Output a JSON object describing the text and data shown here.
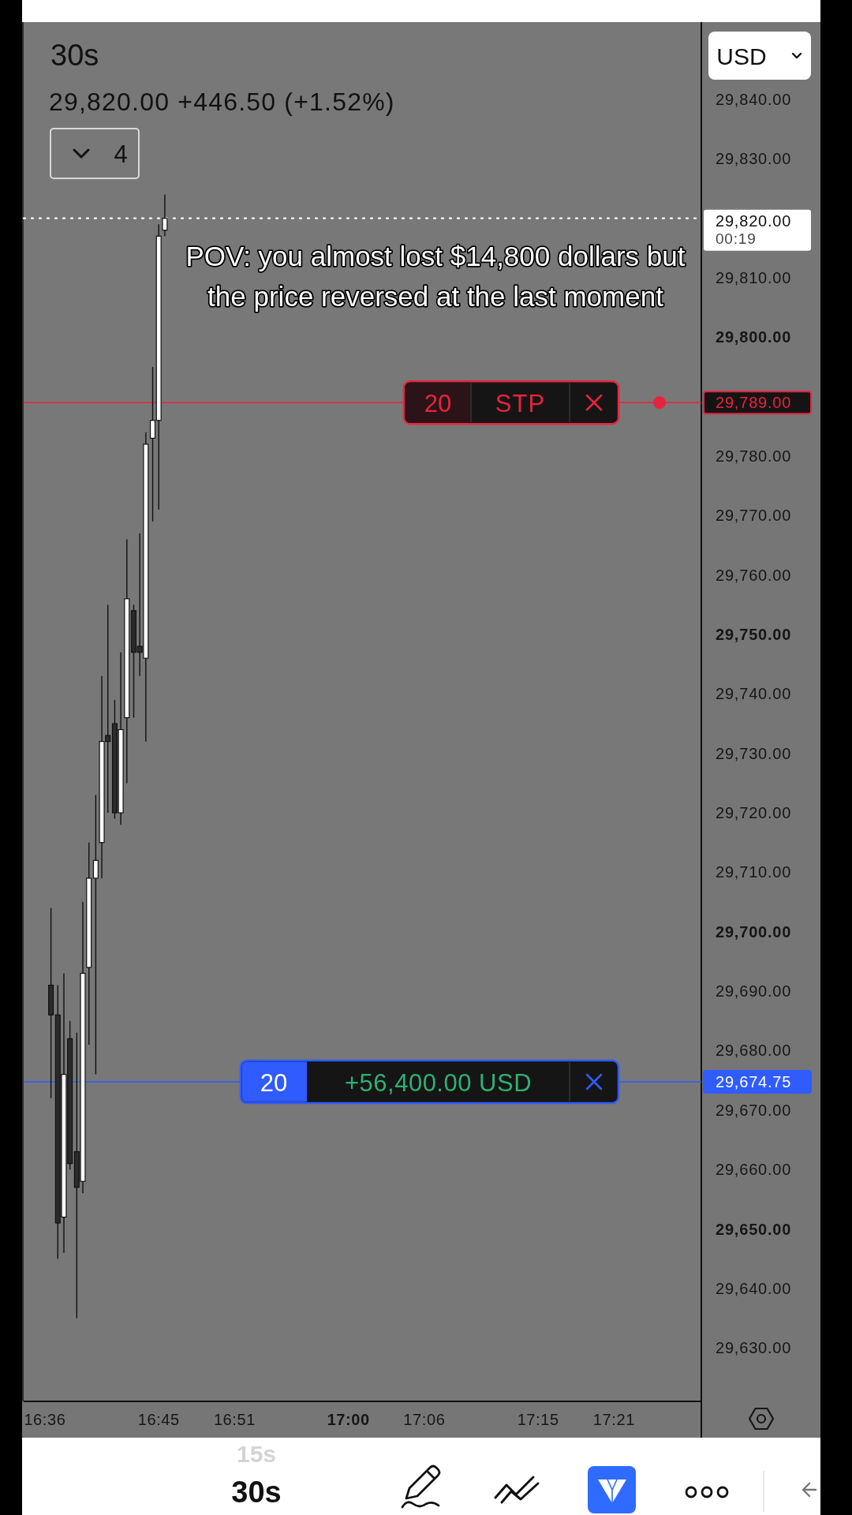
{
  "chart_data": {
    "type": "candlestick",
    "title": "30s",
    "subtitle": "29,820.00 +446.50 (+1.52%)",
    "x": [
      16.608,
      16.617,
      16.625,
      16.633,
      16.642,
      16.65,
      16.658,
      16.667,
      16.675,
      16.683,
      16.692,
      16.7,
      16.708,
      16.717,
      16.725,
      16.733,
      16.742,
      16.75,
      16.758
    ],
    "ohlc": [
      [
        29691,
        29704,
        29672,
        29686
      ],
      [
        29686,
        29691,
        29645,
        29651
      ],
      [
        29652,
        29693,
        29646,
        29676
      ],
      [
        29682,
        29685,
        29660,
        29661
      ],
      [
        29663,
        29683,
        29635,
        29657
      ],
      [
        29658,
        29705,
        29656,
        29693
      ],
      [
        29694,
        29715,
        29681,
        29709
      ],
      [
        29709,
        29723,
        29676,
        29712
      ],
      [
        29715,
        29743,
        29709,
        29732
      ],
      [
        29733,
        29755,
        29720,
        29732
      ],
      [
        29735,
        29739,
        29719,
        29720
      ],
      [
        29720,
        29747,
        29718,
        29734
      ],
      [
        29736,
        29766,
        29725,
        29756
      ],
      [
        29754,
        29755,
        29736,
        29747
      ],
      [
        29748,
        29767,
        29743,
        29747
      ],
      [
        29746,
        29784,
        29732,
        29782
      ],
      [
        29783,
        29795,
        29769,
        29786
      ],
      [
        29786,
        29819,
        29771,
        29817
      ],
      [
        29818,
        29824,
        29817,
        29820
      ]
    ],
    "colors": [
      "#2b2b2b",
      "#2b2b2b",
      "#ffffff",
      "#2b2b2b",
      "#2b2b2b",
      "#ffffff",
      "#ffffff",
      "#ffffff",
      "#ffffff",
      "#2b2b2b",
      "#2b2b2b",
      "#ffffff",
      "#ffffff",
      "#2b2b2b",
      "#2b2b2b",
      "#ffffff",
      "#ffffff",
      "#ffffff",
      "#ffffff"
    ],
    "xlim": [
      16.572,
      17.465
    ],
    "xticks": [
      {
        "value": 16.6,
        "label": "16:36"
      },
      {
        "value": 16.75,
        "label": "16:45"
      },
      {
        "value": 16.85,
        "label": "16:51"
      },
      {
        "value": 17,
        "label": "17:00"
      },
      {
        "value": 17.1,
        "label": "17:06"
      },
      {
        "value": 17.25,
        "label": "17:15"
      },
      {
        "value": 17.35,
        "label": "17:21"
      }
    ],
    "ylim": [
      29621,
      29853
    ],
    "yticks": [
      {
        "value": 29840,
        "label": "29,840.00"
      },
      {
        "value": 29830,
        "label": "29,830.00"
      },
      {
        "value": 29810,
        "label": "29,810.00"
      },
      {
        "value": 29800,
        "label": "29,800.00"
      },
      {
        "value": 29780,
        "label": "29,780.00"
      },
      {
        "value": 29770,
        "label": "29,770.00"
      },
      {
        "value": 29760,
        "label": "29,760.00"
      },
      {
        "value": 29750,
        "label": "29,750.00"
      },
      {
        "value": 29740,
        "label": "29,740.00"
      },
      {
        "value": 29730,
        "label": "29,730.00"
      },
      {
        "value": 29720,
        "label": "29,720.00"
      },
      {
        "value": 29710,
        "label": "29,710.00"
      },
      {
        "value": 29700,
        "label": "29,700.00"
      },
      {
        "value": 29690,
        "label": "29,690.00"
      },
      {
        "value": 29680,
        "label": "29,680.00"
      },
      {
        "value": 29670,
        "label": "29,670.00"
      },
      {
        "value": 29660,
        "label": "29,660.00"
      },
      {
        "value": 29650,
        "label": "29,650.00"
      },
      {
        "value": 29640,
        "label": "29,640.00"
      },
      {
        "value": 29630,
        "label": "29,630.00"
      }
    ],
    "ref_lines": [
      {
        "axis": "y",
        "value": 29820,
        "label": "29,820.00",
        "color": "#ffffff",
        "line_style": "dotted"
      },
      {
        "axis": "y",
        "value": 29789,
        "label": "29,789.00",
        "color": "#e8233f",
        "line_style": "solid"
      },
      {
        "axis": "y",
        "value": 29674.75,
        "label": "29,674.75",
        "color": "#2f5bff",
        "line_style": "solid"
      }
    ],
    "annotations": [
      "POV: you almost lost $14,800 dollars but the price reversed at the last moment",
      "20",
      "STP",
      "20",
      "+56,400.00 USD",
      "00:19",
      "4",
      "USD",
      "15s",
      "30s"
    ]
  }
}
